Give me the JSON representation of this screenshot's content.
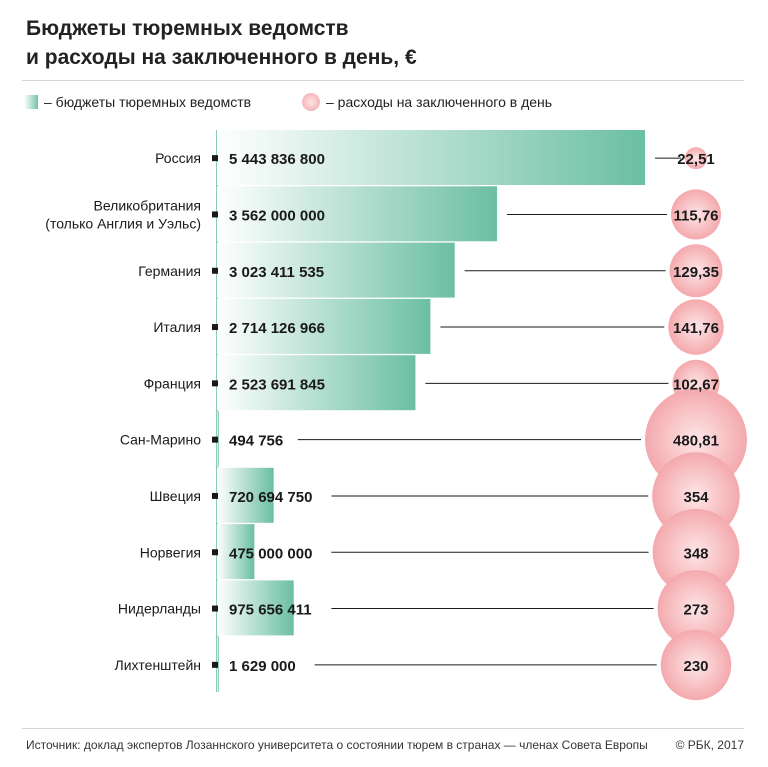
{
  "header": {
    "title_line1": "Бюджеты тюремных ведомств",
    "title_line2": "и расходы на заключенного в день, €"
  },
  "legend": {
    "bars_label": "– бюджеты тюремных ведомств",
    "circles_label": "– расходы на заключенного в день"
  },
  "footer": {
    "source": "Источник: доклад экспертов Лозаннского университета о состоянии тюрем в странах — членах Совета Европы",
    "copyright": "© РБК, 2017"
  },
  "colors": {
    "bar_dark": "#6bbfa3",
    "bar_light": "#ffffff",
    "circle_fill": "#f4a9ad",
    "circle_light": "#fde6e7",
    "line": "#1a1a1a"
  },
  "chart_data": {
    "type": "bar",
    "title": "Бюджеты тюремных ведомств и расходы на заключенного в день, €",
    "orientation": "horizontal",
    "categories": [
      [
        "Россия"
      ],
      [
        "Великобритания",
        "(только Англия и Уэльс)"
      ],
      [
        "Германия"
      ],
      [
        "Италия"
      ],
      [
        "Франция"
      ],
      [
        "Сан-Марино"
      ],
      [
        "Швеция"
      ],
      [
        "Норвегия"
      ],
      [
        "Нидерланды"
      ],
      [
        "Лихтенштейн"
      ]
    ],
    "series": [
      {
        "name": "бюджеты тюремных ведомств",
        "display": "bar",
        "values": [
          5443836800,
          3562000000,
          3023411535,
          2714126966,
          2523691845,
          494756,
          720694750,
          475000000,
          975656411,
          1629000
        ],
        "labels": [
          "5 443 836 800",
          "3 562 000 000",
          "3 023 411 535",
          "2 714 126 966",
          "2 523 691 845",
          "494 756",
          "720 694 750",
          "475 000 000",
          "975 656 411",
          "1 629 000"
        ]
      },
      {
        "name": "расходы на заключенного в день",
        "display": "circle",
        "values": [
          22.51,
          115.76,
          129.35,
          141.76,
          102.67,
          480.81,
          354,
          348,
          273,
          230
        ],
        "labels": [
          "22,51",
          "115,76",
          "129,35",
          "141,76",
          "102,67",
          "480,81",
          "354",
          "348",
          "273",
          "230"
        ]
      }
    ],
    "xlim": [
      0,
      5443836800
    ]
  }
}
